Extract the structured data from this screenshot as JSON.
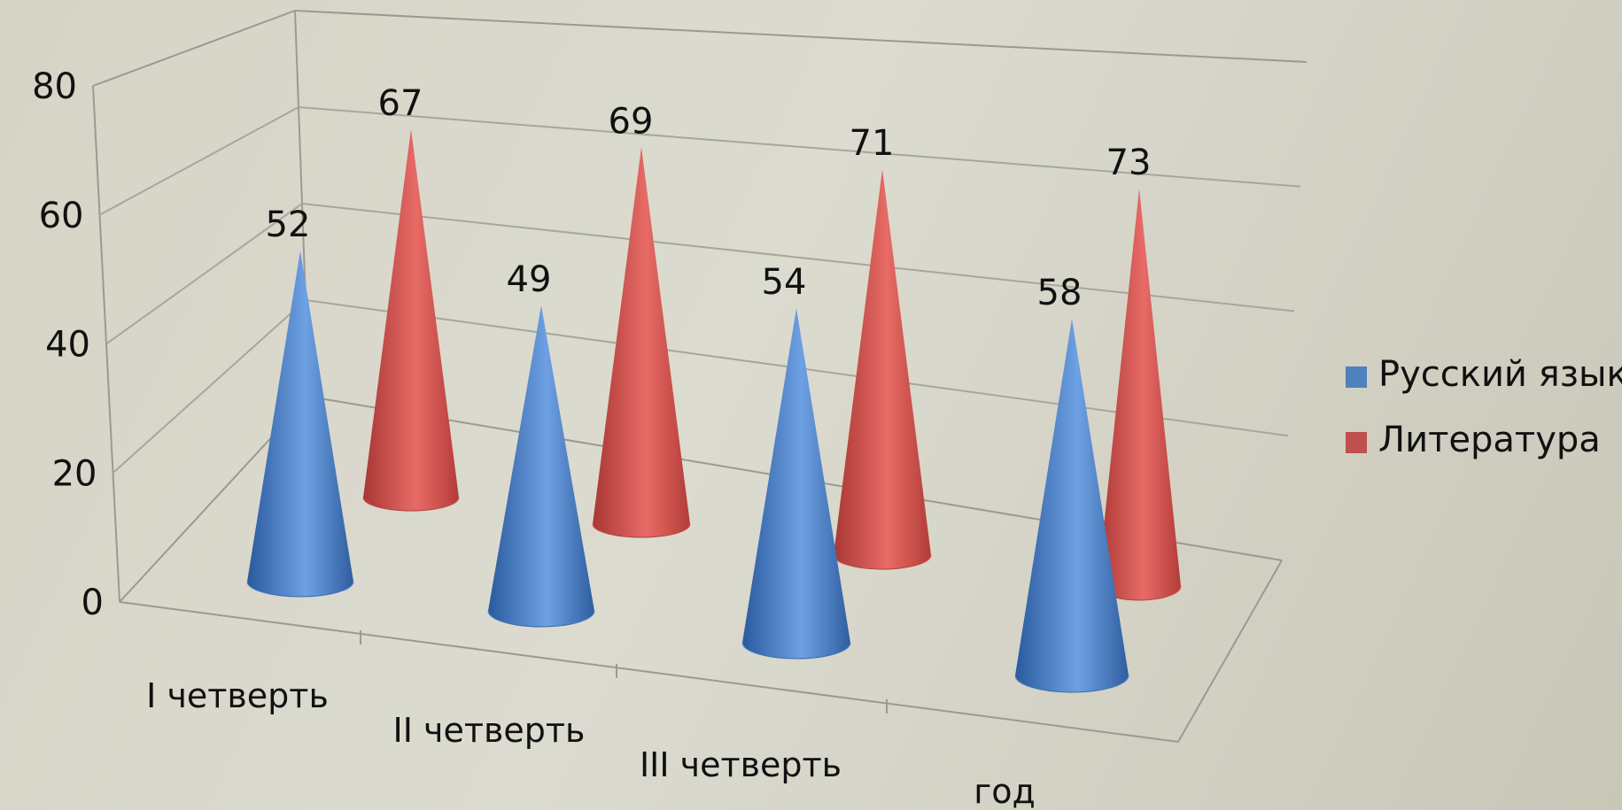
{
  "chart_data": {
    "type": "bar",
    "style": "3d-cone",
    "categories": [
      "I четверть",
      "II четверть",
      "III четверть",
      "год"
    ],
    "series": [
      {
        "name": "Русский язык",
        "values": [
          52,
          49,
          54,
          58
        ],
        "color": "#4f81bd"
      },
      {
        "name": "Литература",
        "values": [
          67,
          69,
          71,
          73
        ],
        "color": "#c0504d"
      }
    ],
    "y_ticks": [
      "0",
      "20",
      "40",
      "60",
      "80"
    ],
    "ylim": [
      0,
      80
    ],
    "grid": true,
    "legend": "right"
  }
}
